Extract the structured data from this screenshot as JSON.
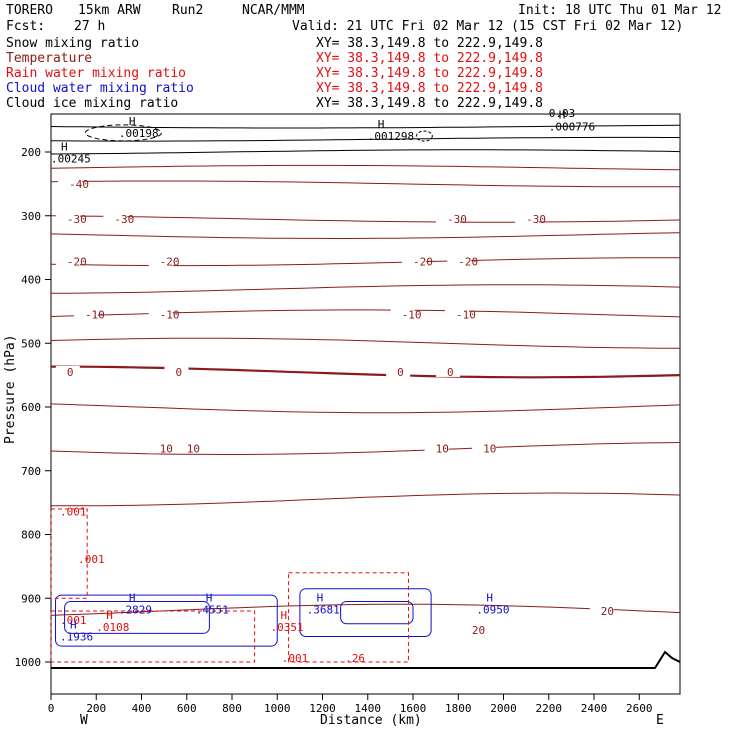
{
  "header": {
    "model": "TORERO",
    "res": "15km ARW",
    "run": "Run2",
    "org": "NCAR/MMM",
    "init": "Init: 18 UTC Thu 01 Mar 12",
    "fcst": "Fcst:",
    "fcst_h": "27 h",
    "valid": "Valid: 21 UTC Fri 02 Mar 12 (15 CST Fri 02 Mar 12)"
  },
  "legend": [
    {
      "name": "Snow mixing ratio",
      "xy": "XY=  38.3,149.8 to 222.9,149.8",
      "color": "#000000"
    },
    {
      "name": "Temperature",
      "xy": "XY=  38.3,149.8 to 222.9,149.8",
      "color": "#8b1a1a"
    },
    {
      "name": "Rain water mixing ratio",
      "xy": "XY=  38.3,149.8 to 222.9,149.8",
      "color": "#e01010"
    },
    {
      "name": "Cloud water mixing ratio",
      "xy": "XY=  38.3,149.8 to 222.9,149.8",
      "color": "#1010c8"
    },
    {
      "name": "Cloud ice mixing ratio",
      "xy": "XY=  38.3,149.8 to 222.9,149.8",
      "color": "#000000"
    }
  ],
  "chart_data": {
    "type": "cross-section contour",
    "xlabel": "Distance (km)",
    "ylabel": "Pressure (hPa)",
    "xlim": [
      0,
      2780
    ],
    "ylim": [
      1050,
      150
    ],
    "xticks": [
      0,
      200,
      400,
      600,
      800,
      1000,
      1200,
      1400,
      1600,
      1800,
      2000,
      2200,
      2400,
      2600
    ],
    "yticks": [
      200,
      300,
      400,
      500,
      600,
      700,
      800,
      900,
      1000
    ],
    "west_label": "W",
    "east_label": "E",
    "temperature_isotherms": [
      {
        "value": -50,
        "p": 160
      },
      {
        "value": -50,
        "p": 180
      },
      {
        "value": -45,
        "p": 200
      },
      {
        "value": -40,
        "p": 225
      },
      {
        "value": -35,
        "p": 250
      },
      {
        "value": -30,
        "p": 305
      },
      {
        "value": -25,
        "p": 330
      },
      {
        "value": -20,
        "p": 372
      },
      {
        "value": -15,
        "p": 415
      },
      {
        "value": -10,
        "p": 455
      },
      {
        "value": -5,
        "p": 500
      },
      {
        "value": 0,
        "p": 545
      },
      {
        "value": 5,
        "p": 600
      },
      {
        "value": 10,
        "p": 665
      },
      {
        "value": 15,
        "p": 745
      },
      {
        "value": 20,
        "p": 920
      }
    ],
    "temperature_labels": [
      "-30",
      "-30",
      "-30",
      "-30",
      "-20",
      "-20",
      "-20",
      "-20",
      "-10",
      "-10",
      "-10",
      "-10",
      "0",
      "0",
      "0",
      "0",
      "10",
      "10",
      "10",
      "10",
      "20",
      "20",
      "-40"
    ],
    "highs": [
      {
        "label": "H",
        "value": ".00198",
        "x": 300,
        "p": 170,
        "color": "#000000"
      },
      {
        "label": "H",
        "value": ".001298",
        "x": 1400,
        "p": 175,
        "color": "#000000"
      },
      {
        "label": "H",
        "value": ".00245",
        "x": 0,
        "p": 210,
        "color": "#000000"
      },
      {
        "label": "H",
        "value": ".000776",
        "x": 2200,
        "p": 160,
        "color": "#000000"
      },
      {
        "label": "H",
        "value": ".2829",
        "x": 300,
        "p": 918,
        "color": "#1010c8"
      },
      {
        "label": "H",
        "value": ".4551",
        "x": 640,
        "p": 918,
        "color": "#1010c8"
      },
      {
        "label": "H",
        "value": ".3681",
        "x": 1130,
        "p": 918,
        "color": "#1010c8"
      },
      {
        "label": "H",
        "value": ".0950",
        "x": 1880,
        "p": 918,
        "color": "#1010c8"
      },
      {
        "label": "H",
        "value": ".1936",
        "x": 40,
        "p": 960,
        "color": "#1010c8"
      },
      {
        "label": "H",
        "value": ".0108",
        "x": 200,
        "p": 945,
        "color": "#e01010"
      },
      {
        "label": "H",
        "value": ".0351",
        "x": 970,
        "p": 945,
        "color": "#e01010"
      }
    ],
    "rain_labels": [
      ".001",
      ".001",
      ".001",
      ".001",
      ".26"
    ],
    "extra_labels": [
      "0.03"
    ]
  }
}
